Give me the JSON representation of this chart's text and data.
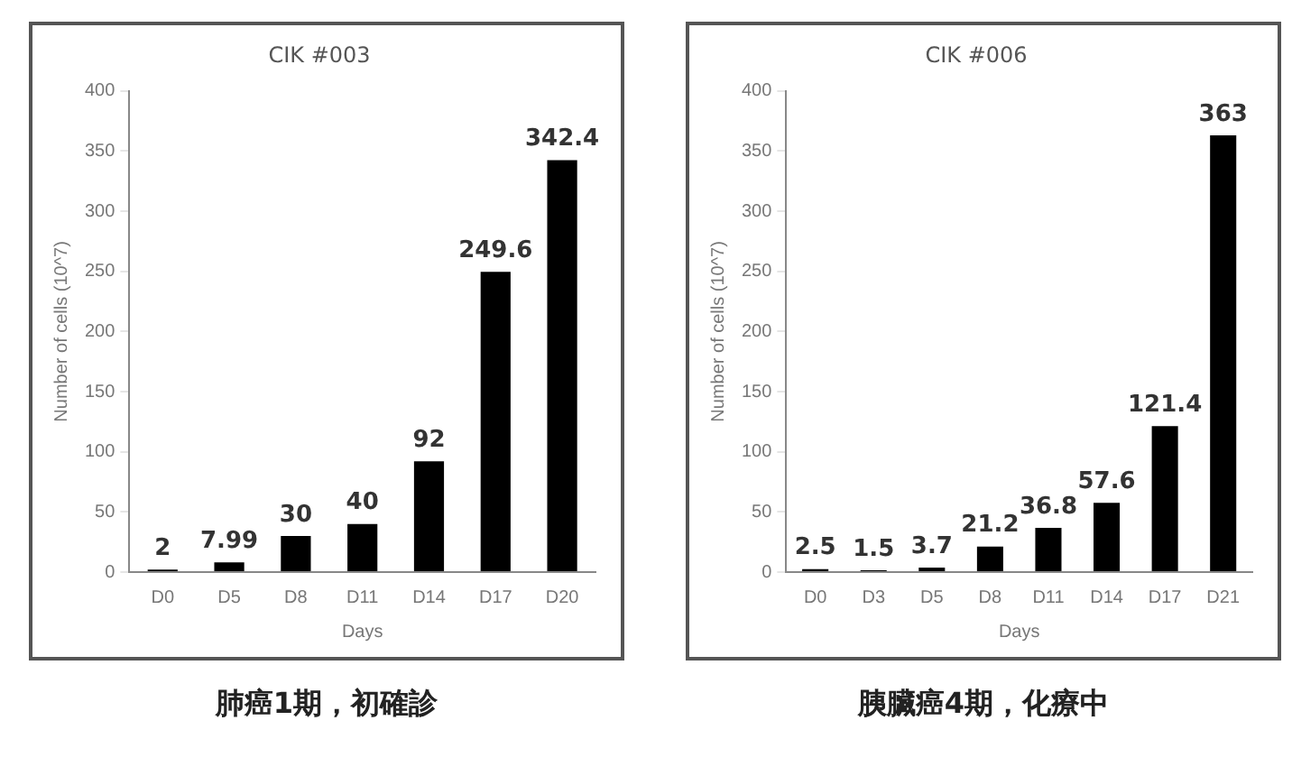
{
  "chart_data": [
    {
      "type": "bar",
      "title": "CIK #003",
      "xlabel": "Days",
      "ylabel": "Number of cells (10^7)",
      "categories": [
        "D0",
        "D5",
        "D8",
        "D11",
        "D14",
        "D17",
        "D20"
      ],
      "values": [
        2,
        7.99,
        30,
        40,
        92,
        249.6,
        342.4
      ],
      "color": "#000000",
      "ylim": [
        0,
        400
      ],
      "yticks": [
        0,
        50,
        100,
        150,
        200,
        250,
        300,
        350,
        400
      ],
      "data_labels": true,
      "annotations": [
        "肺癌1期，初確診"
      ]
    },
    {
      "type": "bar",
      "title": "CIK #006",
      "xlabel": "Days",
      "ylabel": "Number of cells (10^7)",
      "categories": [
        "D0",
        "D3",
        "D5",
        "D8",
        "D11",
        "D14",
        "D17",
        "D21"
      ],
      "values": [
        2.5,
        1.5,
        3.7,
        21.2,
        36.8,
        57.6,
        121.4,
        363
      ],
      "color": "#000000",
      "ylim": [
        0,
        400
      ],
      "yticks": [
        0,
        50,
        100,
        150,
        200,
        250,
        300,
        350,
        400
      ],
      "data_labels": true,
      "annotations": [
        "胰臟癌4期，化療中"
      ]
    }
  ]
}
